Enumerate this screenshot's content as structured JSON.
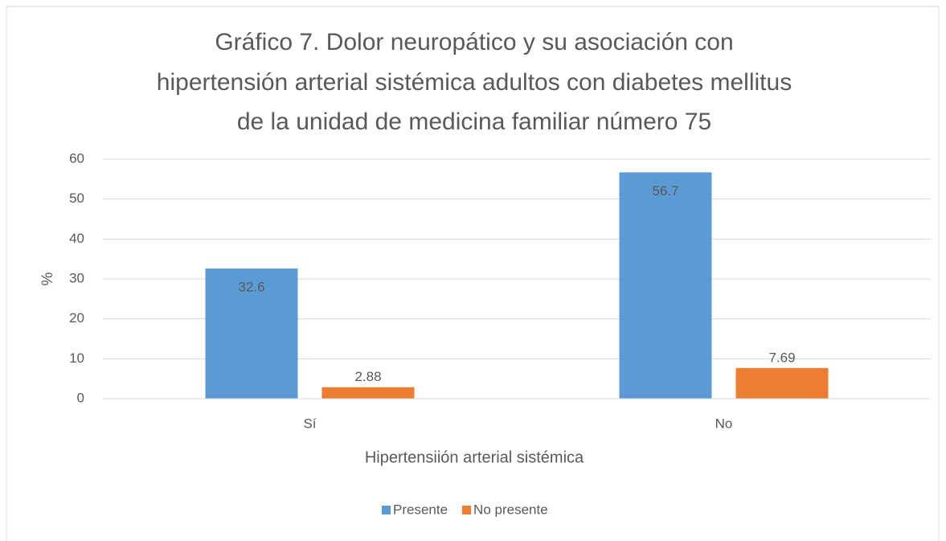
{
  "chart_data": {
    "type": "bar",
    "title": [
      "Gráfico 7. Dolor neuropático y su asociación con",
      "hipertensión arterial sistémica adultos con diabetes mellitus",
      "de la unidad de medicina familiar número 75"
    ],
    "categories": [
      "Sí",
      "No"
    ],
    "series": [
      {
        "name": "Presente",
        "color": "#5b9bd5",
        "values": [
          32.6,
          56.7
        ]
      },
      {
        "name": "No presente",
        "color": "#ed7d31",
        "values": [
          2.88,
          7.69
        ]
      }
    ],
    "xlabel": "Hipertensiión arterial sistémica",
    "ylabel": "%",
    "ylim": [
      0,
      60
    ],
    "yticks": [
      0,
      10,
      20,
      30,
      40,
      50,
      60
    ],
    "grid": true,
    "legend": "bottom"
  }
}
